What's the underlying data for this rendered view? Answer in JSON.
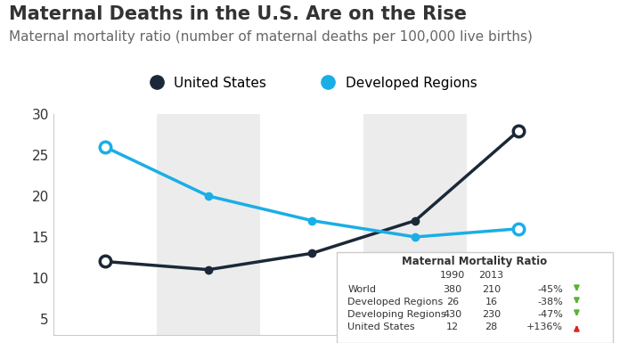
{
  "chart_data": {
    "type": "line",
    "title": "Maternal Deaths in the U.S. Are on the Rise",
    "subtitle": "Maternal mortality ratio (number of maternal deaths per 100,000 live births)",
    "categories": [
      null,
      null,
      null,
      null,
      null
    ],
    "series": [
      {
        "name": "United States",
        "color": "#1b2838",
        "marker": "o",
        "values": [
          12,
          11,
          13,
          17,
          28
        ]
      },
      {
        "name": "Developed Regions",
        "color": "#1aaee6",
        "marker": "o",
        "values": [
          26,
          20,
          17,
          15,
          16
        ]
      }
    ],
    "ylim": [
      3,
      30
    ],
    "yticks": [
      5,
      10,
      15,
      20,
      25,
      30
    ],
    "grid": false,
    "legend": "upper center",
    "tick_labels": "y",
    "table": {
      "title": "Maternal Mortality Ratio",
      "columns": [
        "1990",
        "2013"
      ],
      "rows": [
        {
          "label": "World",
          "values": [
            380,
            210
          ],
          "change": "-45%"
        },
        {
          "label": "Developed Regions",
          "values": [
            26,
            16
          ],
          "change": "-38%"
        },
        {
          "label": "Developing Regions",
          "values": [
            430,
            230
          ],
          "change": "-47%"
        },
        {
          "label": "United States",
          "values": [
            12,
            28
          ],
          "change": "+136%"
        }
      ]
    }
  }
}
